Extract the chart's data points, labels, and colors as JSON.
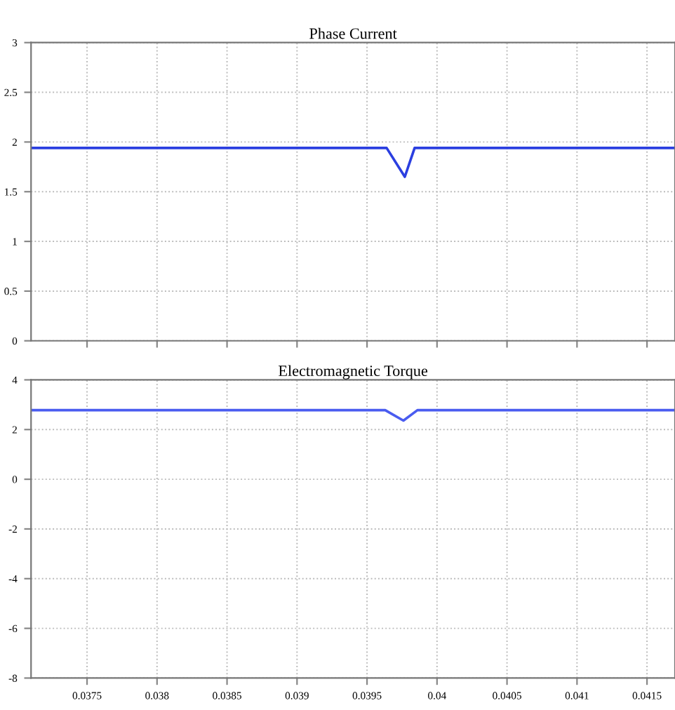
{
  "chart_data": [
    {
      "type": "line",
      "title": "Phase Current",
      "xlim": [
        0.0371,
        0.0417
      ],
      "ylim": [
        0,
        3
      ],
      "yticks": [
        0,
        0.5,
        1,
        1.5,
        2,
        2.5,
        3
      ],
      "tick_labels": "y",
      "grid": true,
      "line_style": "solid",
      "series": [
        {
          "color": "#2b3fe0",
          "x": [
            0.0371,
            0.03964,
            0.03977,
            0.03984,
            0.0417
          ],
          "values": [
            1.94,
            1.94,
            1.65,
            1.94,
            1.94
          ]
        }
      ]
    },
    {
      "type": "line",
      "title": "Electromagnetic Torque",
      "xlim": [
        0.0371,
        0.0417
      ],
      "ylim": [
        -8,
        4
      ],
      "yticks": [
        -8,
        -6,
        -4,
        -2,
        0,
        2,
        4
      ],
      "xticks": [
        0.0375,
        0.038,
        0.0385,
        0.039,
        0.0395,
        0.04,
        0.0405,
        0.041,
        0.0415
      ],
      "grid": true,
      "line_style": "solid",
      "series": [
        {
          "color": "#4a5cf0",
          "x": [
            0.0371,
            0.03963,
            0.03976,
            0.03986,
            0.0417
          ],
          "values": [
            2.78,
            2.78,
            2.36,
            2.78,
            2.78
          ]
        }
      ]
    }
  ]
}
